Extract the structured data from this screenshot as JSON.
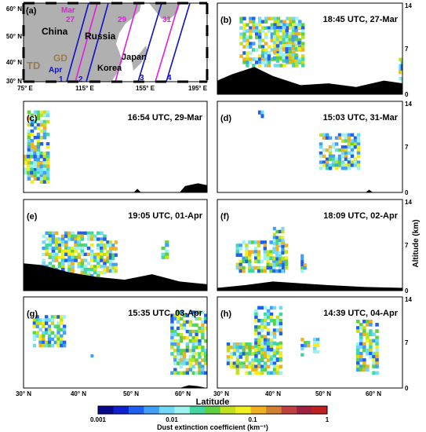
{
  "figure": {
    "map": {
      "label": "(a)",
      "lat_ticks": [
        "60° N",
        "50° N",
        "40° N",
        "30° N"
      ],
      "lon_ticks": [
        "75° E",
        "115° E",
        "155° E",
        "195° E"
      ],
      "places": [
        "China",
        "Russia",
        "Korea",
        "Japan",
        "TD",
        "GD"
      ],
      "month_labels": [
        "Mar",
        "Apr"
      ],
      "date_labels": [
        "27",
        "29",
        "31"
      ],
      "track_numbers": [
        "1",
        "2",
        "3",
        "4"
      ],
      "colors": {
        "mar": "#e020e0",
        "apr": "#1010c8",
        "td": "#9a7a50",
        "gd": "#9a7a50",
        "land": "#b0b0b0"
      }
    },
    "panels": [
      {
        "label": "(b)",
        "title": "18:45 UTC, 27-Mar"
      },
      {
        "label": "(c)",
        "title": "16:54 UTC, 29-Mar"
      },
      {
        "label": "(d)",
        "title": "15:03 UTC, 31-Mar"
      },
      {
        "label": "(e)",
        "title": "19:05 UTC, 01-Apr"
      },
      {
        "label": "(f)",
        "title": "18:09 UTC, 02-Apr"
      },
      {
        "label": "(g)",
        "title": "15:35 UTC, 03-Apr"
      },
      {
        "label": "(h)",
        "title": "14:39 UTC, 04-Apr"
      }
    ],
    "altitude_axis": {
      "label": "Altitude (km)",
      "ticks": [
        "14",
        "7",
        "0"
      ]
    },
    "latitude_axis": {
      "label": "Latitude",
      "ticks": [
        "30° N",
        "40° N",
        "50° N",
        "60° N"
      ]
    },
    "colorbar": {
      "label": "Dust extinction coefficient (km⁻¹)",
      "ticks": [
        "0.001",
        "0.01",
        "0.1",
        "1"
      ],
      "colors": [
        "#08088c",
        "#1020d0",
        "#2060f0",
        "#40a0f8",
        "#70d8f8",
        "#a0f0f0",
        "#40d8a0",
        "#60d040",
        "#c0e020",
        "#f0f020",
        "#f0b020",
        "#d08030",
        "#c04040",
        "#a02040",
        "#c02020"
      ]
    }
  }
}
